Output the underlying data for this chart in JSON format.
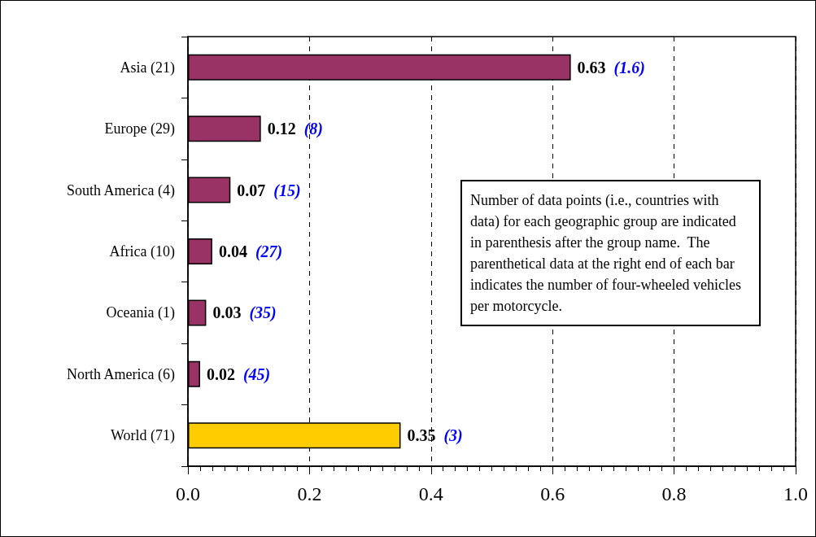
{
  "chart_data": {
    "type": "bar",
    "orientation": "horizontal",
    "categories": [
      "Asia (21)",
      "Europe (29)",
      "South America (4)",
      "Africa (10)",
      "Oceania (1)",
      "North America (6)",
      "World (71)"
    ],
    "values": [
      0.63,
      0.12,
      0.07,
      0.04,
      0.03,
      0.02,
      0.35
    ],
    "colors": [
      "#993366",
      "#993366",
      "#993366",
      "#993366",
      "#993366",
      "#993366",
      "#ffcc00"
    ],
    "xlim": [
      0,
      1
    ],
    "xticks": [
      {
        "value": 0,
        "label": "0.0"
      },
      0.2,
      0.4,
      0.6,
      0.8,
      {
        "value": 1,
        "label": "1.0"
      }
    ],
    "grid": "x",
    "data_labels": true,
    "annotations": [
      "(1.6)",
      "(8)",
      "(15)",
      "(27)",
      "(35)",
      "(45)",
      "(3)",
      "Number of data points (i.e., countries with data) for each geographic group are indicated in parenthesis after the group name.  The parenthetical data at the right end of each bar indicates the number of four-wheeled vehicles per motorcycle."
    ]
  }
}
